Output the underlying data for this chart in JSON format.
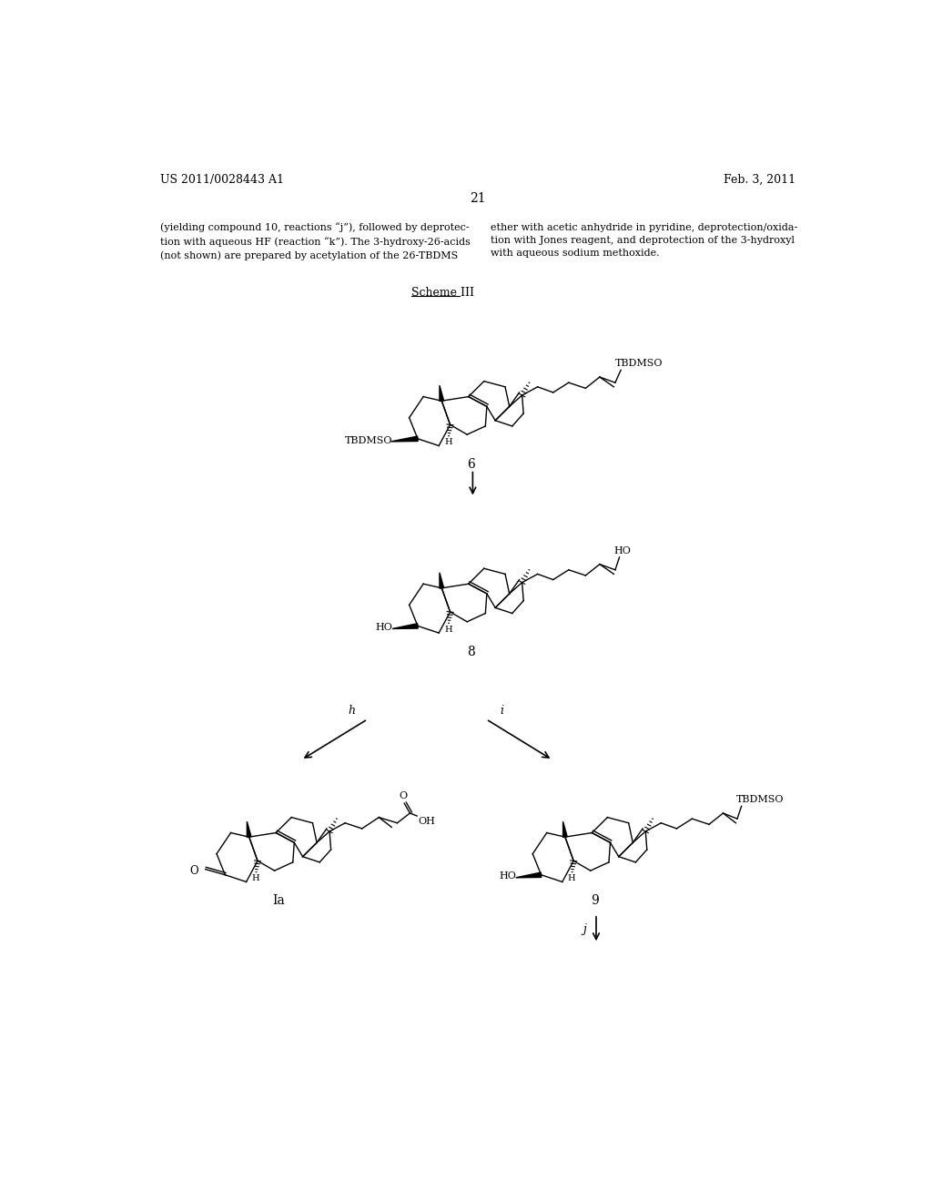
{
  "background_color": "#ffffff",
  "header_left": "US 2011/0028443 A1",
  "header_right": "Feb. 3, 2011",
  "page_number": "21",
  "body_text_left": "(yielding compound 10, reactions “j”), followed by deprotec-\ntion with aqueous HF (reaction “k”). The 3-hydroxy-26-acids\n(not shown) are prepared by acetylation of the 26-TBDMS",
  "body_text_right": "ether with acetic anhydride in pyridine, deprotection/oxida-\ntion with Jones reagent, and deprotection of the 3-hydroxyl\nwith aqueous sodium methoxide.",
  "scheme_label": "Scheme III",
  "compound_6_label": "6",
  "compound_8_label": "8",
  "compound_Ia_label": "Ia",
  "compound_9_label": "9"
}
